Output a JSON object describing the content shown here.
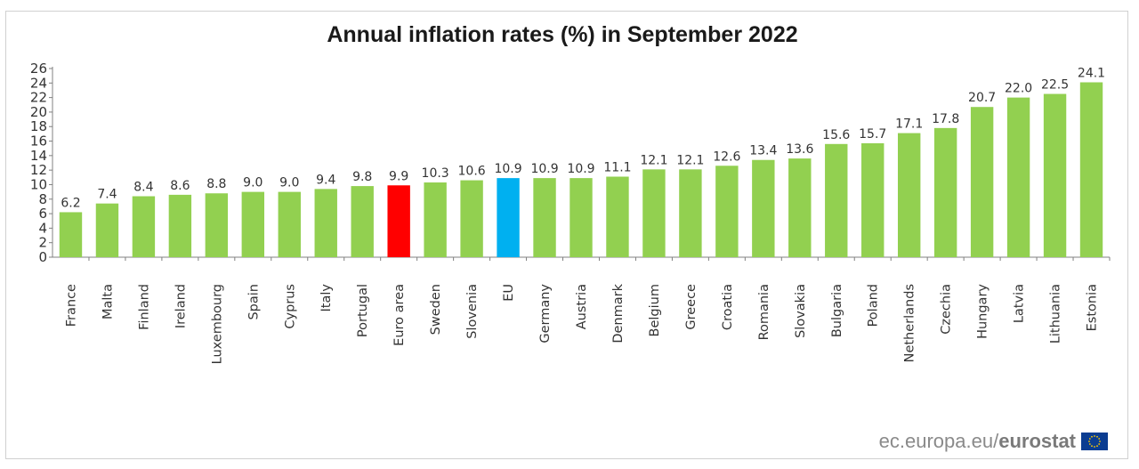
{
  "chart_data": {
    "type": "bar",
    "title": "Annual inflation rates (%) in September 2022",
    "xlabel": "",
    "ylabel": "",
    "ylim": [
      0,
      26
    ],
    "yticks": [
      0,
      2,
      4,
      6,
      8,
      10,
      12,
      14,
      16,
      18,
      20,
      22,
      24,
      26
    ],
    "categories": [
      "France",
      "Malta",
      "Finland",
      "Ireland",
      "Luxembourg",
      "Spain",
      "Cyprus",
      "Italy",
      "Portugal",
      "Euro area",
      "Sweden",
      "Slovenia",
      "EU",
      "Germany",
      "Austria",
      "Denmark",
      "Belgium",
      "Greece",
      "Croatia",
      "Romania",
      "Slovakia",
      "Bulgaria",
      "Poland",
      "Netherlands",
      "Czechia",
      "Hungary",
      "Latvia",
      "Lithuania",
      "Estonia"
    ],
    "values": [
      6.2,
      7.4,
      8.4,
      8.6,
      8.8,
      9.0,
      9.0,
      9.4,
      9.8,
      9.9,
      10.3,
      10.6,
      10.9,
      10.9,
      10.9,
      11.1,
      12.1,
      12.1,
      12.6,
      13.4,
      13.6,
      15.6,
      15.7,
      17.1,
      17.8,
      20.7,
      22.0,
      22.5,
      24.1
    ],
    "value_labels": [
      "6.2",
      "7.4",
      "8.4",
      "8.6",
      "8.8",
      "9.0",
      "9.0",
      "9.4",
      "9.8",
      "9.9",
      "10.3",
      "10.6",
      "10.9",
      "10.9",
      "10.9",
      "11.1",
      "12.1",
      "12.1",
      "12.6",
      "13.4",
      "13.6",
      "15.6",
      "15.7",
      "17.1",
      "17.8",
      "20.7",
      "22.0",
      "22.5",
      "24.1"
    ],
    "grid": false,
    "colors": {
      "default": "#92d050",
      "Euro area": "#ff0000",
      "EU": "#00b0f0"
    }
  },
  "footer": {
    "source_prefix": "ec.europa.eu/",
    "source_brand": "eurostat"
  }
}
